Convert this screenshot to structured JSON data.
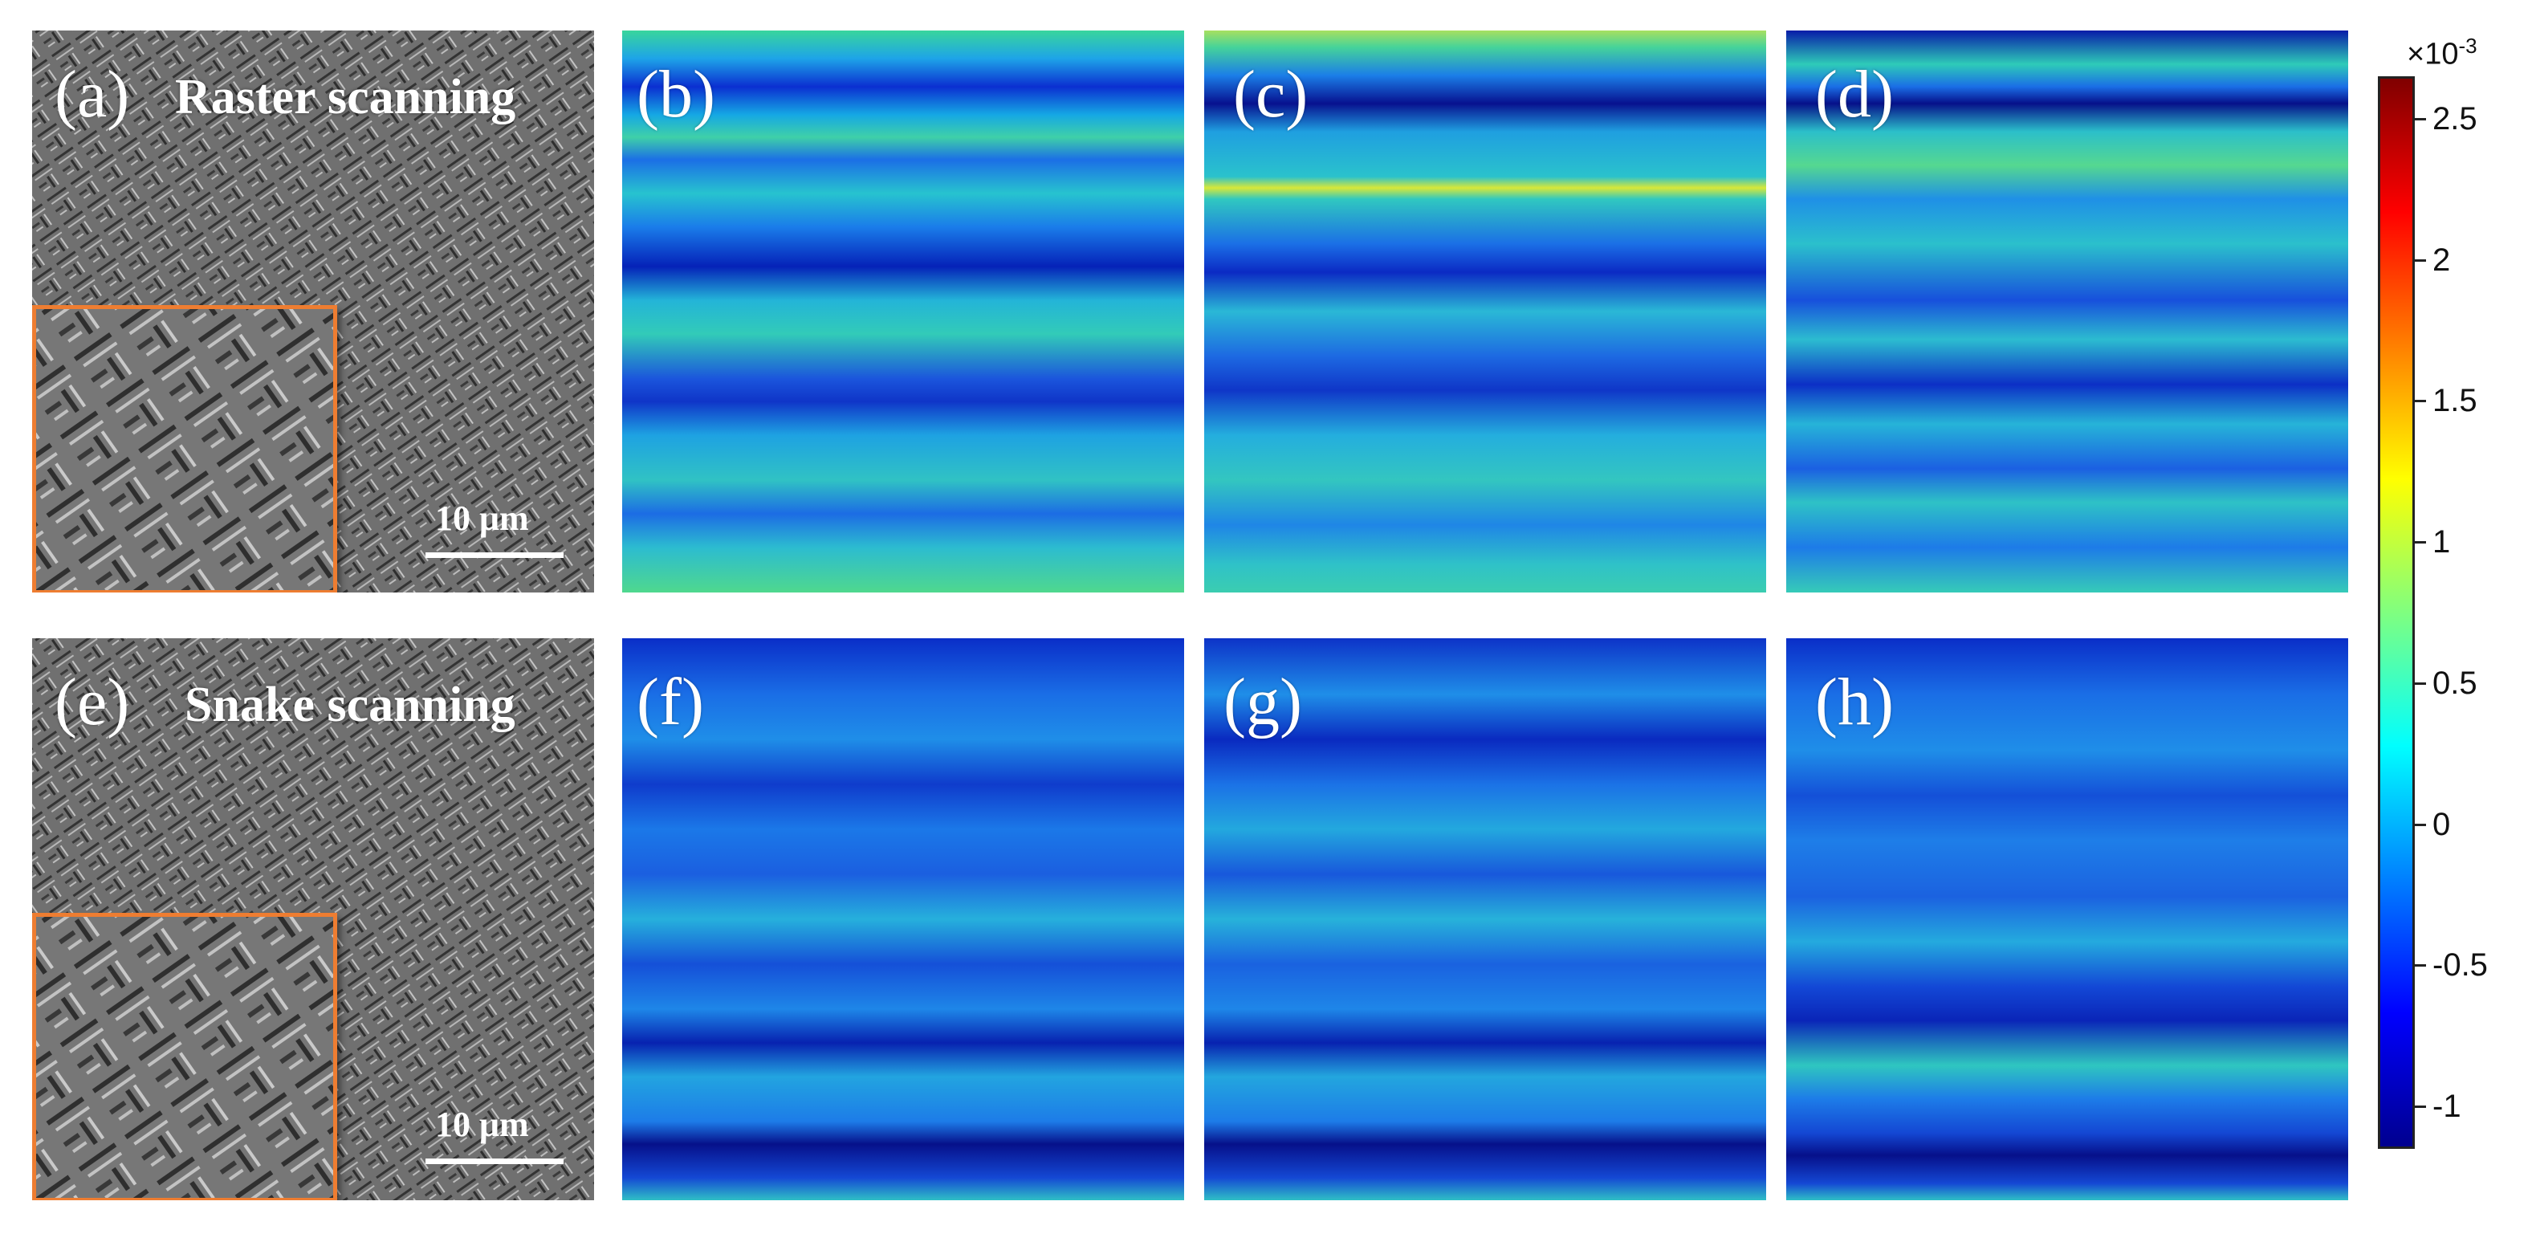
{
  "figure": {
    "sem_panels": [
      {
        "id": "a",
        "label": "(a)",
        "title": "Raster scanning",
        "scale_label": "10 μm"
      },
      {
        "id": "e",
        "label": "(e)",
        "title": "Snake scanning",
        "scale_label": "10 μm"
      }
    ],
    "map_panels": [
      {
        "id": "b",
        "label": "(b)"
      },
      {
        "id": "c",
        "label": "(c)"
      },
      {
        "id": "d",
        "label": "(d)"
      },
      {
        "id": "f",
        "label": "(f)"
      },
      {
        "id": "g",
        "label": "(g)"
      },
      {
        "id": "h",
        "label": "(h)"
      }
    ],
    "colorbar": {
      "multiplier_base": "×10",
      "multiplier_exp": "-3",
      "ticks": [
        "2.5",
        "2",
        "1.5",
        "1",
        "0.5",
        "0",
        "-0.5",
        "-1"
      ],
      "colormap": "jet",
      "range": [
        -1.15,
        2.65
      ]
    },
    "colors": {
      "inset_border": "#ee7d31"
    }
  }
}
